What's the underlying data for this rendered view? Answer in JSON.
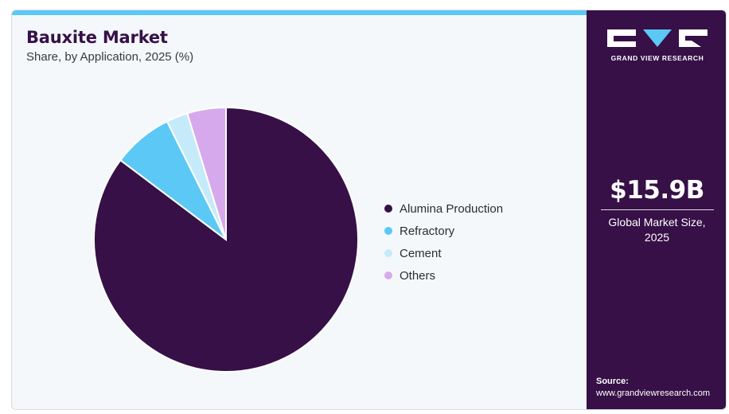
{
  "header": {
    "title": "Bauxite Market",
    "subtitle": "Share, by Application, 2025 (%)"
  },
  "chart_data": {
    "type": "pie",
    "categories": [
      "Alumina Production",
      "Refractory",
      "Cement",
      "Others"
    ],
    "values": [
      81,
      7,
      2.5,
      4.5
    ],
    "colors": [
      "#361047",
      "#5bc8f5",
      "#c5ebfa",
      "#d6a9ec"
    ],
    "start_angle_deg": 0,
    "direction": "clockwise",
    "legend_position": "right"
  },
  "sidebar": {
    "logo_text": "GRAND VIEW RESEARCH",
    "market_value": "$15.9B",
    "market_label": "Global Market Size, 2025",
    "source_label": "Source:",
    "source_url": "www.grandviewresearch.com"
  },
  "colors": {
    "brand_dark": "#361047",
    "accent": "#5bc8f5"
  }
}
